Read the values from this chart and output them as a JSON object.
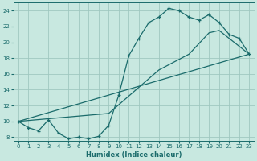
{
  "bg_color": "#c8e8e0",
  "grid_color": "#a0c8c0",
  "line_color": "#1a6b6b",
  "xlabel": "Humidex (Indice chaleur)",
  "xlim": [
    -0.5,
    23.5
  ],
  "ylim": [
    7.5,
    25.0
  ],
  "xticks": [
    0,
    1,
    2,
    3,
    4,
    5,
    6,
    7,
    8,
    9,
    10,
    11,
    12,
    13,
    14,
    15,
    16,
    17,
    18,
    19,
    20,
    21,
    22,
    23
  ],
  "yticks": [
    8,
    10,
    12,
    14,
    16,
    18,
    20,
    22,
    24
  ],
  "curve1_x": [
    0,
    1,
    2,
    3,
    4,
    5,
    6,
    7,
    8,
    9,
    10,
    11,
    12,
    13,
    14,
    15,
    16,
    17,
    18,
    19,
    20,
    21,
    22,
    23
  ],
  "curve1_y": [
    10.0,
    9.2,
    8.8,
    10.2,
    8.5,
    7.8,
    8.0,
    7.8,
    8.1,
    9.5,
    13.3,
    18.3,
    20.5,
    22.5,
    23.2,
    24.3,
    24.0,
    23.2,
    22.8,
    23.5,
    22.5,
    21.0,
    20.5,
    18.5
  ],
  "curve2_x": [
    0,
    23
  ],
  "curve2_y": [
    10.0,
    18.5
  ],
  "curve3_x": [
    0,
    9,
    14,
    17,
    19,
    20,
    21,
    22,
    23
  ],
  "curve3_y": [
    10.0,
    11.0,
    16.5,
    18.5,
    21.2,
    21.5,
    20.5,
    19.5,
    18.5
  ]
}
